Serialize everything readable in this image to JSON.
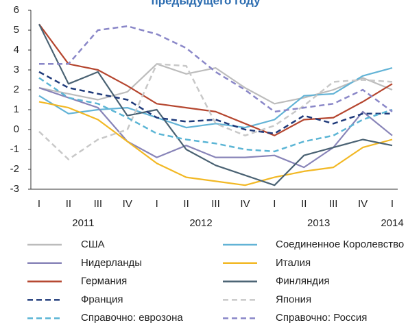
{
  "chart_data": {
    "type": "line",
    "title": "предыдущего году",
    "categories": [
      "I",
      "II",
      "III",
      "IV",
      "I",
      "II",
      "III",
      "IV",
      "I",
      "II",
      "III",
      "IV",
      "I"
    ],
    "year_groups": [
      {
        "label": "2011",
        "from": 0,
        "to": 3
      },
      {
        "label": "2012",
        "from": 4,
        "to": 7
      },
      {
        "label": "2013",
        "from": 8,
        "to": 11
      },
      {
        "label": "2014",
        "from": 12,
        "to": 12
      }
    ],
    "ylim": [
      -3,
      6
    ],
    "yticks": [
      -3,
      -2,
      -1,
      0,
      1,
      2,
      3,
      4,
      5,
      6
    ],
    "grid": false,
    "series": [
      {
        "name": "США",
        "color": "#bcbcbc",
        "dashed": false,
        "values": [
          2.1,
          1.8,
          1.5,
          1.9,
          3.3,
          2.8,
          3.1,
          2.1,
          1.3,
          1.6,
          2.0,
          2.6,
          2.0
        ]
      },
      {
        "name": "Соединенное Королевство",
        "color": "#62b3d6",
        "dashed": false,
        "values": [
          1.7,
          0.8,
          1.0,
          1.1,
          0.6,
          0.1,
          0.3,
          0.1,
          0.5,
          1.7,
          1.8,
          2.7,
          3.1
        ]
      },
      {
        "name": "Нидерланды",
        "color": "#8884b8",
        "dashed": false,
        "values": [
          2.1,
          1.6,
          1.1,
          -0.6,
          -1.4,
          -0.8,
          -1.4,
          -1.4,
          -1.3,
          -1.9,
          -0.9,
          0.9,
          -0.3
        ]
      },
      {
        "name": "Италия",
        "color": "#f2b824",
        "dashed": false,
        "values": [
          1.4,
          1.1,
          0.5,
          -0.6,
          -1.7,
          -2.4,
          -2.6,
          -2.8,
          -2.4,
          -2.1,
          -1.9,
          -0.9,
          -0.5
        ]
      },
      {
        "name": "Германия",
        "color": "#b5462f",
        "dashed": false,
        "values": [
          5.3,
          3.3,
          3.0,
          2.2,
          1.3,
          1.1,
          0.9,
          0.3,
          -0.3,
          0.5,
          0.6,
          1.4,
          2.3
        ]
      },
      {
        "name": "Финляндия",
        "color": "#4a6273",
        "dashed": false,
        "values": [
          5.3,
          2.3,
          2.9,
          0.7,
          1.0,
          -1.0,
          -1.8,
          -2.3,
          -2.8,
          -1.3,
          -0.9,
          -0.5,
          -0.8
        ]
      },
      {
        "name": "Франция",
        "color": "#1f3a7a",
        "dashed": true,
        "values": [
          2.9,
          2.1,
          1.8,
          1.5,
          0.6,
          0.4,
          0.5,
          0.0,
          -0.2,
          0.7,
          0.3,
          0.8,
          0.8
        ]
      },
      {
        "name": "Япония",
        "color": "#c8c8c8",
        "dashed": true,
        "values": [
          -0.1,
          -1.5,
          -0.5,
          0.0,
          3.3,
          3.2,
          0.3,
          -0.3,
          0.2,
          1.2,
          2.4,
          2.5,
          2.4
        ]
      },
      {
        "name": "Справочно: еврозона",
        "color": "#5bb5d5",
        "dashed": true,
        "values": [
          2.6,
          1.6,
          1.3,
          0.6,
          -0.2,
          -0.5,
          -0.7,
          -1.0,
          -1.1,
          -0.6,
          -0.3,
          0.5,
          1.0
        ]
      },
      {
        "name": "Справочно: Россия",
        "color": "#8a87c8",
        "dashed": true,
        "values": [
          3.3,
          3.3,
          5.0,
          5.2,
          4.8,
          4.1,
          2.9,
          2.0,
          0.9,
          1.1,
          1.3,
          2.0,
          0.9
        ]
      }
    ]
  }
}
